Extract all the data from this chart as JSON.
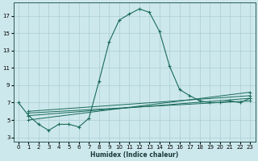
{
  "background_color": "#cde8ec",
  "grid_color": "#aacdd4",
  "line_color": "#1a6b5a",
  "xlabel": "Humidex (Indice chaleur)",
  "xlim": [
    -0.5,
    23.5
  ],
  "ylim": [
    2.5,
    18.5
  ],
  "xticks": [
    0,
    1,
    2,
    3,
    4,
    5,
    6,
    7,
    8,
    9,
    10,
    11,
    12,
    13,
    14,
    15,
    16,
    17,
    18,
    19,
    20,
    21,
    22,
    23
  ],
  "yticks": [
    3,
    5,
    7,
    9,
    11,
    13,
    15,
    17
  ],
  "main_curve": {
    "x": [
      0,
      1,
      2,
      3,
      4,
      5,
      6,
      7,
      8,
      9,
      10,
      11,
      12,
      13,
      14,
      15,
      16,
      17,
      18,
      19,
      20,
      21,
      22,
      23
    ],
    "y": [
      7.0,
      5.5,
      4.5,
      3.8,
      4.5,
      4.5,
      4.2,
      5.2,
      9.5,
      14.0,
      16.5,
      17.2,
      17.8,
      17.4,
      15.2,
      11.2,
      8.5,
      7.8,
      7.2,
      7.0,
      7.0,
      7.2,
      7.0,
      7.5
    ]
  },
  "flat_lines": [
    {
      "x": [
        1,
        23
      ],
      "y": [
        5.0,
        8.2
      ]
    },
    {
      "x": [
        1,
        23
      ],
      "y": [
        5.5,
        7.5
      ]
    },
    {
      "x": [
        1,
        23
      ],
      "y": [
        5.8,
        7.2
      ]
    },
    {
      "x": [
        1,
        23
      ],
      "y": [
        6.0,
        7.8
      ]
    }
  ]
}
